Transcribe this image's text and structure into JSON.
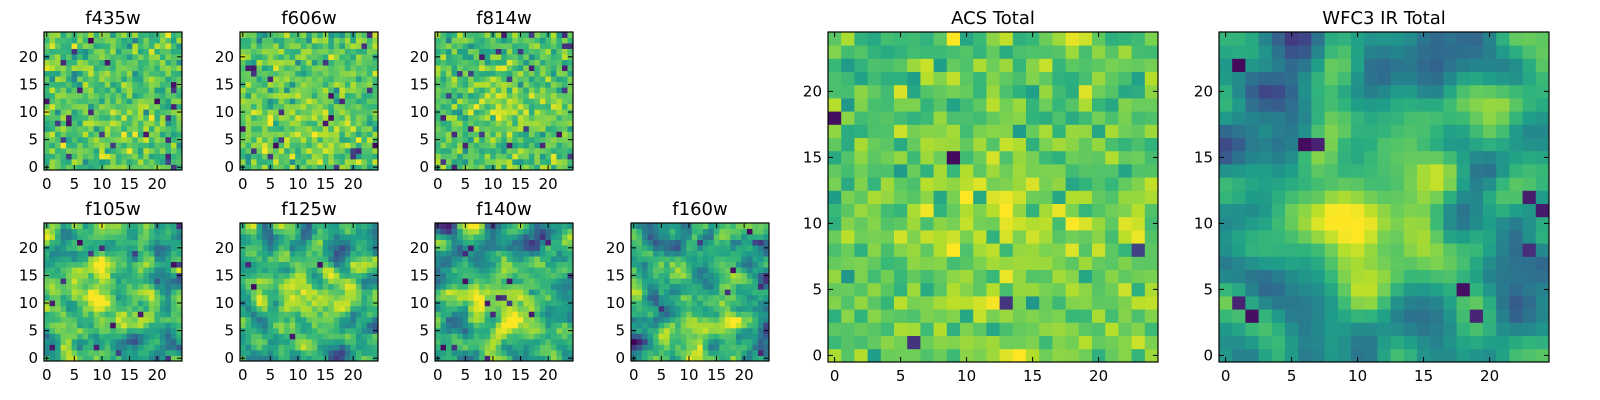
{
  "figure": {
    "colormap": "viridis",
    "colormap_stops": [
      "#440154",
      "#482878",
      "#3e4989",
      "#31688e",
      "#26828e",
      "#1f9e89",
      "#35b779",
      "#6ece58",
      "#b5de2b",
      "#fde725"
    ]
  },
  "chart_data": [
    {
      "type": "heatmap",
      "title": "f435w",
      "grid_size": 25,
      "xlim": [
        -0.5,
        24.5
      ],
      "ylim": [
        -0.5,
        24.5
      ],
      "xticks": [
        0,
        5,
        10,
        15,
        20
      ],
      "yticks": [
        0,
        5,
        10,
        15,
        20
      ],
      "seed": 11,
      "smooth": 0,
      "noise": 1.0,
      "peak": [
        13,
        8
      ],
      "peak_amp": 0.06,
      "peak_sigma": 4,
      "base": 0.72,
      "spread": 0.1,
      "dark_frac": 0.035
    },
    {
      "type": "heatmap",
      "title": "f606w",
      "grid_size": 25,
      "xlim": [
        -0.5,
        24.5
      ],
      "ylim": [
        -0.5,
        24.5
      ],
      "xticks": [
        0,
        5,
        10,
        15,
        20
      ],
      "yticks": [
        0,
        5,
        10,
        15,
        20
      ],
      "seed": 23,
      "smooth": 0,
      "noise": 1.0,
      "peak": [
        11,
        8
      ],
      "peak_amp": 0.08,
      "peak_sigma": 4,
      "base": 0.74,
      "spread": 0.1,
      "dark_frac": 0.035
    },
    {
      "type": "heatmap",
      "title": "f814w",
      "grid_size": 25,
      "xlim": [
        -0.5,
        24.5
      ],
      "ylim": [
        -0.5,
        24.5
      ],
      "xticks": [
        0,
        5,
        10,
        15,
        20
      ],
      "yticks": [
        0,
        5,
        10,
        15,
        20
      ],
      "seed": 37,
      "smooth": 0,
      "noise": 1.0,
      "peak": [
        13,
        11
      ],
      "peak_amp": 0.1,
      "peak_sigma": 4,
      "base": 0.72,
      "spread": 0.1,
      "dark_frac": 0.04
    },
    {
      "type": "heatmap",
      "title": "f105w",
      "grid_size": 25,
      "xlim": [
        -0.5,
        24.5
      ],
      "ylim": [
        -0.5,
        24.5
      ],
      "xticks": [
        0,
        5,
        10,
        15,
        20
      ],
      "yticks": [
        0,
        5,
        10,
        15,
        20
      ],
      "seed": 41,
      "smooth": 1,
      "noise": 1.0,
      "peak": [
        11,
        11
      ],
      "peak_amp": 0.22,
      "peak_sigma": 5,
      "base": 0.62,
      "spread": 0.13,
      "dark_frac": 0.02
    },
    {
      "type": "heatmap",
      "title": "f125w",
      "grid_size": 25,
      "xlim": [
        -0.5,
        24.5
      ],
      "ylim": [
        -0.5,
        24.5
      ],
      "xticks": [
        0,
        5,
        10,
        15,
        20
      ],
      "yticks": [
        0,
        5,
        10,
        15,
        20
      ],
      "seed": 53,
      "smooth": 1,
      "noise": 1.0,
      "peak": [
        12,
        11
      ],
      "peak_amp": 0.22,
      "peak_sigma": 5,
      "base": 0.6,
      "spread": 0.13,
      "dark_frac": 0.02
    },
    {
      "type": "heatmap",
      "title": "f140w",
      "grid_size": 25,
      "xlim": [
        -0.5,
        24.5
      ],
      "ylim": [
        -0.5,
        24.5
      ],
      "xticks": [
        0,
        5,
        10,
        15,
        20
      ],
      "yticks": [
        0,
        5,
        10,
        15,
        20
      ],
      "seed": 67,
      "smooth": 1,
      "noise": 1.0,
      "peak": [
        12,
        8
      ],
      "peak_amp": 0.25,
      "peak_sigma": 5,
      "base": 0.58,
      "spread": 0.14,
      "dark_frac": 0.02
    },
    {
      "type": "heatmap",
      "title": "f160w",
      "grid_size": 25,
      "xlim": [
        -0.5,
        24.5
      ],
      "ylim": [
        -0.5,
        24.5
      ],
      "xticks": [
        0,
        5,
        10,
        15,
        20
      ],
      "yticks": [
        0,
        5,
        10,
        15,
        20
      ],
      "seed": 79,
      "smooth": 1,
      "noise": 1.0,
      "peak": [
        11,
        6
      ],
      "peak_amp": 0.25,
      "peak_sigma": 5,
      "base": 0.56,
      "spread": 0.14,
      "dark_frac": 0.02
    },
    {
      "type": "heatmap",
      "title": "ACS Total",
      "grid_size": 25,
      "xlim": [
        -0.5,
        24.5
      ],
      "ylim": [
        -0.5,
        24.5
      ],
      "xticks": [
        0,
        5,
        10,
        15,
        20
      ],
      "yticks": [
        0,
        5,
        10,
        15,
        20
      ],
      "seed": 97,
      "smooth": 0,
      "noise": 1.0,
      "peak": [
        13,
        9
      ],
      "peak_amp": 0.12,
      "peak_sigma": 5,
      "base": 0.74,
      "spread": 0.09,
      "dark_frac": 0.015
    },
    {
      "type": "heatmap",
      "title": "WFC3 IR Total",
      "grid_size": 25,
      "xlim": [
        -0.5,
        24.5
      ],
      "ylim": [
        -0.5,
        24.5
      ],
      "xticks": [
        0,
        5,
        10,
        15,
        20
      ],
      "yticks": [
        0,
        5,
        10,
        15,
        20
      ],
      "seed": 131,
      "smooth": 2,
      "noise": 1.0,
      "peak": [
        11,
        10
      ],
      "peak_amp": 0.34,
      "peak_sigma": 4.5,
      "base": 0.52,
      "spread": 0.12,
      "dark_frac": 0.0,
      "dark_spots": [
        [
          1,
          4
        ],
        [
          2,
          3
        ],
        [
          1,
          22
        ],
        [
          6,
          16
        ],
        [
          7,
          16
        ],
        [
          23,
          12
        ],
        [
          24,
          11
        ],
        [
          19,
          3
        ],
        [
          18,
          5
        ],
        [
          23,
          8
        ]
      ]
    }
  ]
}
